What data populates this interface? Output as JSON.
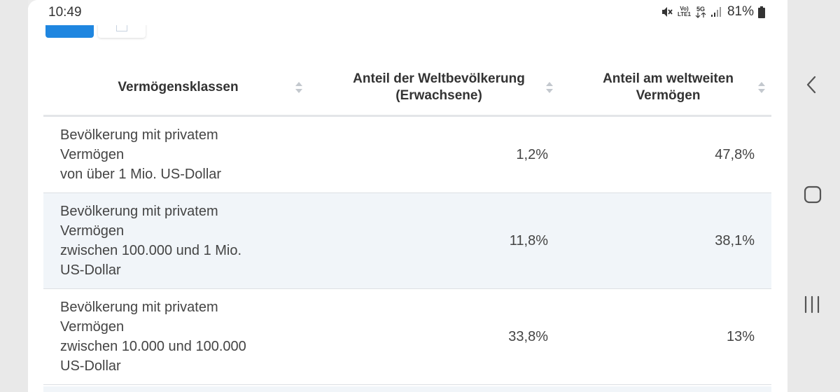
{
  "status_bar": {
    "time": "10:49",
    "battery": "81%",
    "network_small": "Vo)",
    "network_lte": "LTE1",
    "network_5g": "5G"
  },
  "table": {
    "columns": [
      {
        "label": "Vermögensklassen"
      },
      {
        "label_line1": "Anteil der Weltbevölkerung",
        "label_line2": "(Erwachsene)"
      },
      {
        "label_line1": "Anteil am weltweiten",
        "label_line2": "Vermögen"
      }
    ],
    "rows": [
      {
        "label_lines": [
          "Bevölkerung mit privatem",
          "Vermögen",
          "von über 1 Mio. US-Dollar"
        ],
        "population_share": "1,2%",
        "wealth_share": "47,8%"
      },
      {
        "label_lines": [
          "Bevölkerung mit privatem",
          "Vermögen",
          "zwischen 100.000 und 1 Mio.",
          "US-Dollar"
        ],
        "population_share": "11,8%",
        "wealth_share": "38,1%"
      },
      {
        "label_lines": [
          "Bevölkerung mit privatem",
          "Vermögen",
          "zwischen 10.000 und 100.000",
          "US-Dollar"
        ],
        "population_share": "33,8%",
        "wealth_share": "13%"
      }
    ]
  },
  "colors": {
    "accent": "#1f86e0",
    "row_alt": "#f1f5f9",
    "text": "#444444"
  },
  "icons": [
    "mute-icon",
    "signal-icon",
    "battery-icon",
    "sort-icon",
    "back-icon",
    "home-icon",
    "recents-icon"
  ]
}
